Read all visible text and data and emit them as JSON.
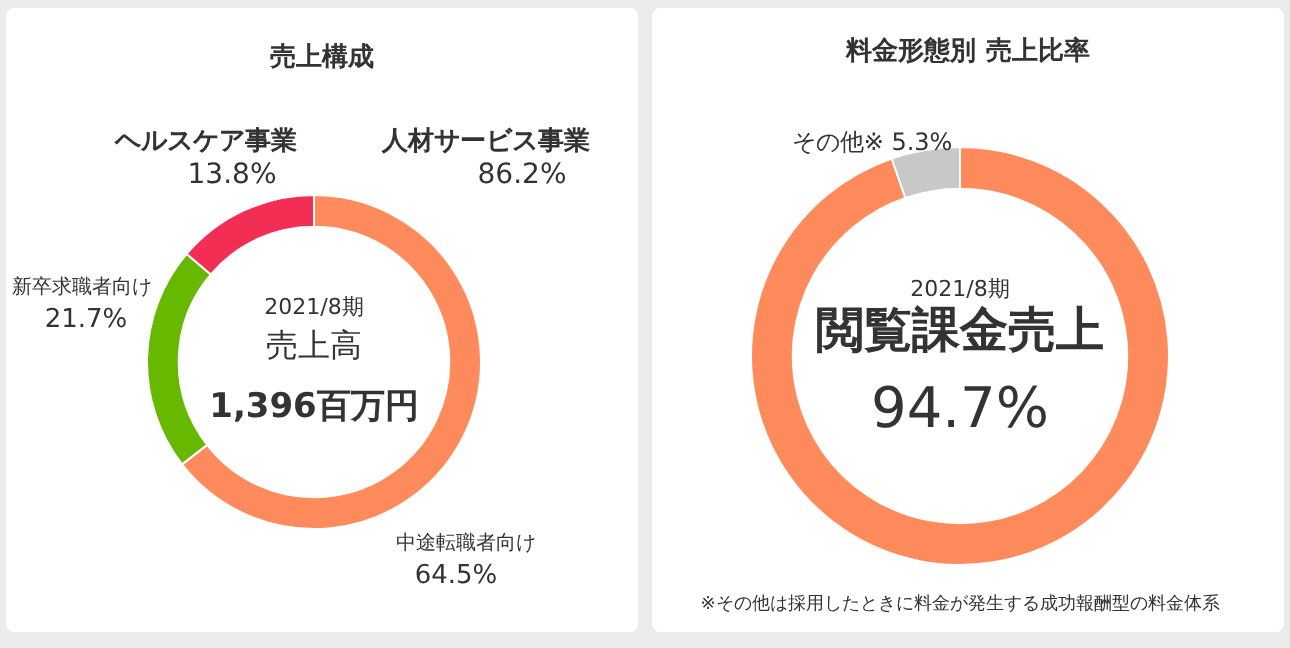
{
  "chart_data": [
    {
      "type": "donut",
      "title": "売上構成",
      "categories": [
        "中途転職者向け",
        "新卒求職者向け",
        "ヘルスケア事業"
      ],
      "values": [
        64.5,
        21.7,
        13.8
      ],
      "colors": [
        "#ff8a5b",
        "#66b800",
        "#f22e55"
      ],
      "value_labels": [
        "64.5%",
        "21.7%",
        "13.8%"
      ],
      "annotations": [
        "人材サービス事業",
        "86.2%",
        "2021/8期",
        "売上高",
        "1,396百万円"
      ]
    },
    {
      "type": "donut",
      "title": "料金形態別 売上比率",
      "categories": [
        "閲覧課金売上",
        "その他※"
      ],
      "values": [
        94.7,
        5.3
      ],
      "colors": [
        "#ff8a5b",
        "#c8c8c8"
      ],
      "value_labels": [
        "94.7%",
        "5.3%"
      ],
      "annotations": [
        "2021/8期",
        "※その他は採用したときに料金が発生する成功報酬型の料金体系"
      ]
    }
  ]
}
